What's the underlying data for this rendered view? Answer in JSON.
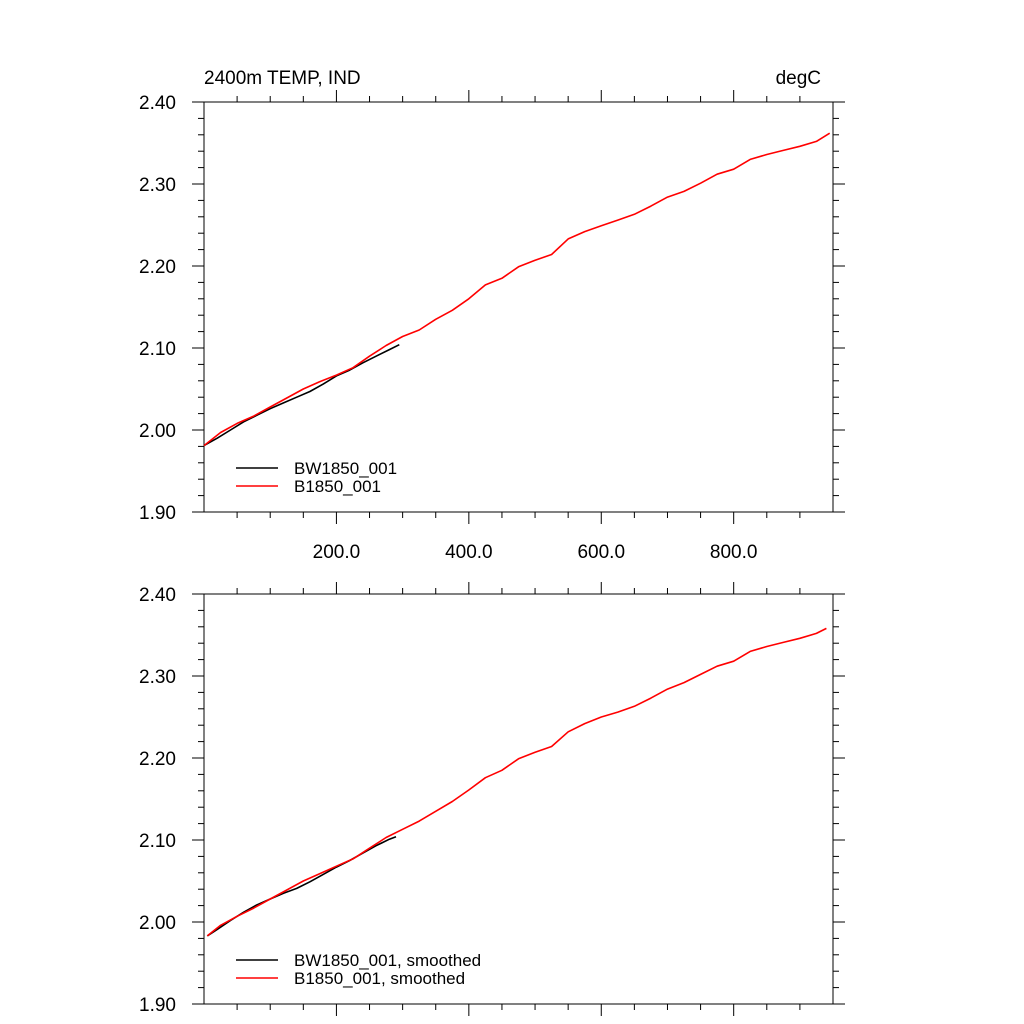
{
  "figure": {
    "title_left": "2400m TEMP, IND",
    "title_right": "degC"
  },
  "chart_data": [
    {
      "type": "line",
      "title": "2400m TEMP, IND",
      "units": "degC",
      "xlim": [
        0,
        950
      ],
      "ylim": [
        1.9,
        2.4
      ],
      "xticks": [
        200,
        400,
        600,
        800
      ],
      "xtick_labels": [
        "200.0",
        "400.0",
        "600.0",
        "800.0"
      ],
      "yticks": [
        1.9,
        2.0,
        2.1,
        2.2,
        2.3,
        2.4
      ],
      "ytick_labels": [
        "1.90",
        "2.00",
        "2.10",
        "2.20",
        "2.30",
        "2.40"
      ],
      "legend_position": "bottom-left",
      "grid": false,
      "series": [
        {
          "name": "BW1850_001",
          "color": "#000000",
          "x": [
            0,
            20,
            40,
            60,
            80,
            100,
            120,
            140,
            160,
            180,
            200,
            220,
            240,
            260,
            280,
            295
          ],
          "y": [
            1.981,
            1.99,
            2.0,
            2.01,
            2.018,
            2.026,
            2.033,
            2.04,
            2.047,
            2.056,
            2.066,
            2.073,
            2.082,
            2.09,
            2.098,
            2.104
          ]
        },
        {
          "name": "B1850_001",
          "color": "#ff0000",
          "x": [
            0,
            25,
            50,
            75,
            100,
            125,
            150,
            175,
            200,
            225,
            250,
            275,
            300,
            325,
            350,
            375,
            400,
            425,
            450,
            475,
            500,
            525,
            550,
            575,
            600,
            625,
            650,
            675,
            700,
            725,
            750,
            775,
            800,
            825,
            850,
            875,
            900,
            925,
            945
          ],
          "y": [
            1.981,
            1.997,
            2.008,
            2.017,
            2.028,
            2.039,
            2.05,
            2.059,
            2.067,
            2.076,
            2.09,
            2.103,
            2.114,
            2.122,
            2.135,
            2.146,
            2.16,
            2.177,
            2.185,
            2.199,
            2.207,
            2.214,
            2.233,
            2.242,
            2.249,
            2.256,
            2.263,
            2.273,
            2.284,
            2.291,
            2.301,
            2.312,
            2.318,
            2.33,
            2.336,
            2.341,
            2.346,
            2.352,
            2.362
          ]
        }
      ]
    },
    {
      "type": "line",
      "xlim": [
        0,
        950
      ],
      "ylim": [
        1.9,
        2.4
      ],
      "yticks": [
        1.9,
        2.0,
        2.1,
        2.2,
        2.3,
        2.4
      ],
      "ytick_labels": [
        "1.90",
        "2.00",
        "2.10",
        "2.20",
        "2.30",
        "2.40"
      ],
      "legend_position": "bottom-left",
      "grid": false,
      "series": [
        {
          "name": "BW1850_001, smoothed",
          "color": "#000000",
          "x": [
            5,
            20,
            40,
            60,
            80,
            100,
            120,
            140,
            160,
            180,
            200,
            220,
            240,
            260,
            280,
            290
          ],
          "y": [
            1.983,
            1.991,
            2.002,
            2.012,
            2.021,
            2.028,
            2.035,
            2.041,
            2.049,
            2.058,
            2.067,
            2.075,
            2.084,
            2.093,
            2.101,
            2.104
          ]
        },
        {
          "name": "B1850_001, smoothed",
          "color": "#ff0000",
          "x": [
            5,
            25,
            50,
            75,
            100,
            125,
            150,
            175,
            200,
            225,
            250,
            275,
            300,
            325,
            350,
            375,
            400,
            425,
            450,
            475,
            500,
            525,
            550,
            575,
            600,
            625,
            650,
            675,
            700,
            725,
            750,
            775,
            800,
            825,
            850,
            875,
            900,
            925,
            940
          ],
          "y": [
            1.983,
            1.996,
            2.007,
            2.017,
            2.028,
            2.039,
            2.05,
            2.059,
            2.068,
            2.077,
            2.09,
            2.103,
            2.113,
            2.123,
            2.135,
            2.147,
            2.161,
            2.176,
            2.185,
            2.199,
            2.207,
            2.214,
            2.232,
            2.242,
            2.25,
            2.256,
            2.263,
            2.273,
            2.284,
            2.292,
            2.302,
            2.312,
            2.318,
            2.33,
            2.336,
            2.341,
            2.346,
            2.352,
            2.358
          ]
        }
      ]
    }
  ]
}
